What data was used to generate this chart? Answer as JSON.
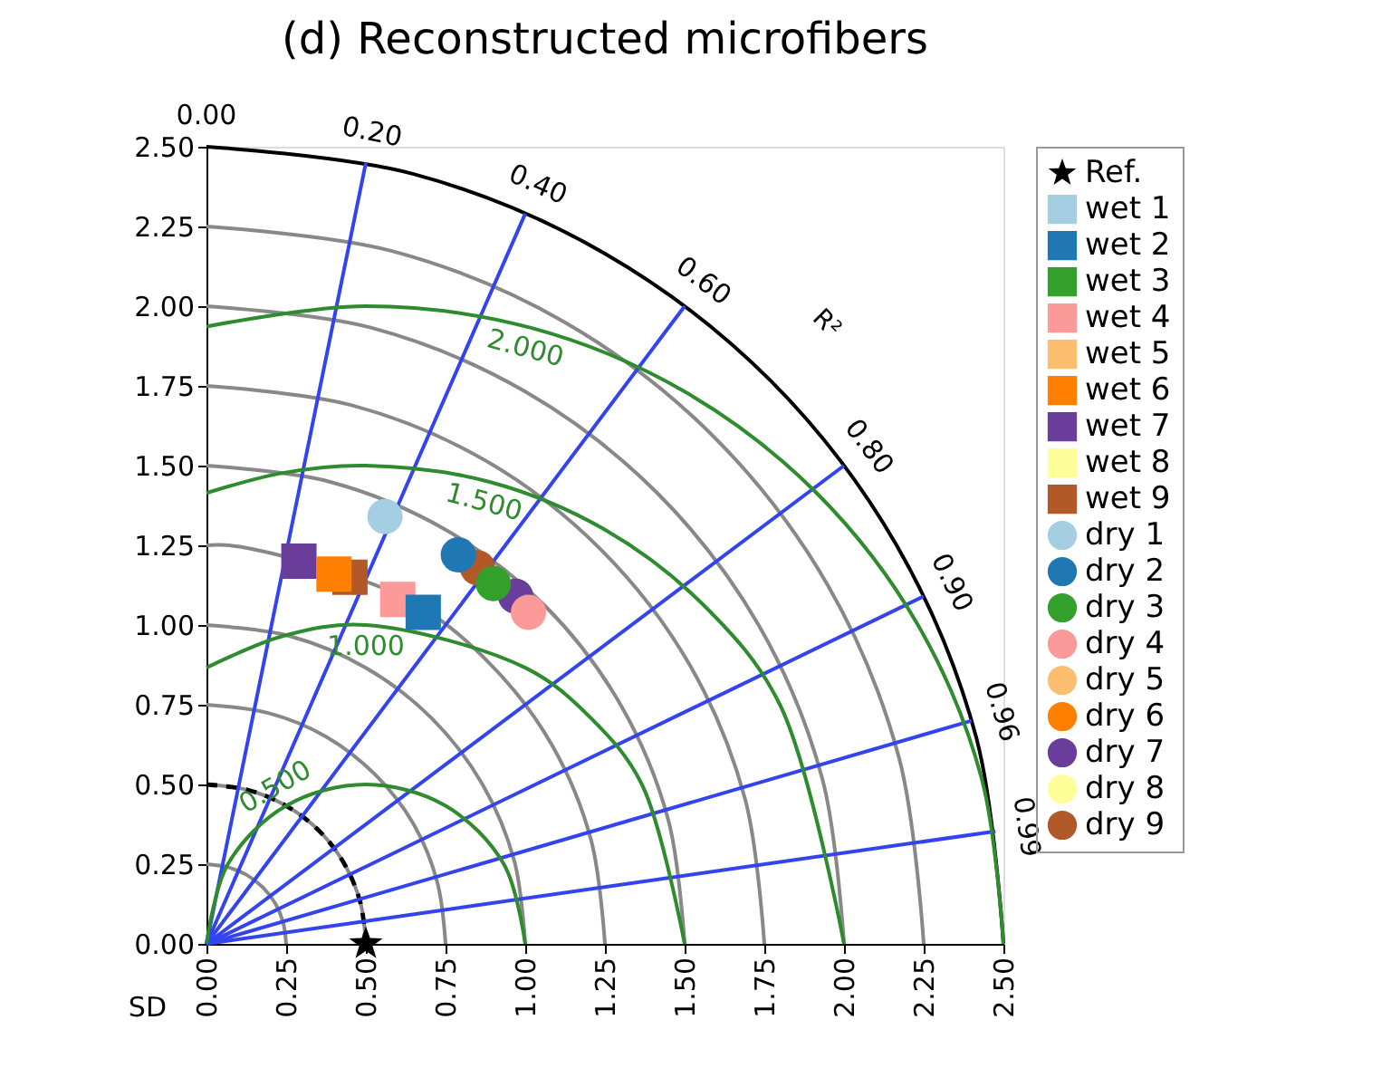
{
  "chart_data": {
    "type": "scatter",
    "title": "(d) Reconstructed microfibers",
    "xlabel": "SD",
    "xlim": [
      0,
      2.5
    ],
    "ylim": [
      0,
      2.5
    ],
    "xticks": [
      {
        "value": 0,
        "label": "0.00"
      },
      {
        "value": 0.25,
        "label": "0.25"
      },
      {
        "value": 0.5,
        "label": "0.50"
      },
      {
        "value": 0.75,
        "label": "0.75"
      },
      {
        "value": 1,
        "label": "1.00"
      },
      {
        "value": 1.25,
        "label": "1.25"
      },
      {
        "value": 1.5,
        "label": "1.50"
      },
      {
        "value": 1.75,
        "label": "1.75"
      },
      {
        "value": 2,
        "label": "2.00"
      },
      {
        "value": 2.25,
        "label": "2.25"
      },
      {
        "value": 2.5,
        "label": "2.50"
      }
    ],
    "yticks": [
      {
        "value": 0,
        "label": "0.00"
      },
      {
        "value": 0.25,
        "label": "0.25"
      },
      {
        "value": 0.5,
        "label": "0.50"
      },
      {
        "value": 0.75,
        "label": "0.75"
      },
      {
        "value": 1,
        "label": "1.00"
      },
      {
        "value": 1.25,
        "label": "1.25"
      },
      {
        "value": 1.5,
        "label": "1.50"
      },
      {
        "value": 1.75,
        "label": "1.75"
      },
      {
        "value": 2,
        "label": "2.00"
      },
      {
        "value": 2.25,
        "label": "2.25"
      },
      {
        "value": 2.5,
        "label": "2.50"
      }
    ],
    "annotations": [
      "R²",
      {
        "text": "0.00",
        "x": 0,
        "y": 2.5
      },
      {
        "text": "0.20",
        "x": 0.5,
        "y": 2.45
      },
      {
        "text": "0.40",
        "x": 1.0,
        "y": 2.29
      },
      {
        "text": "0.60",
        "x": 1.5,
        "y": 2.0
      },
      {
        "text": "0.80",
        "x": 2.0,
        "y": 1.5
      },
      {
        "text": "0.90",
        "x": 2.25,
        "y": 1.09
      },
      {
        "text": "0.96",
        "x": 2.4,
        "y": 0.7
      },
      {
        "text": "0.99",
        "x": 2.475,
        "y": 0.353
      },
      {
        "text": "0.500",
        "x": 0.25,
        "y": 0.433
      },
      {
        "text": "1.000",
        "x": 0.5,
        "y": 1.0
      },
      {
        "text": "1.500",
        "x": 0.888,
        "y": 1.449
      },
      {
        "text": "2.000",
        "x": 1.018,
        "y": 1.932
      }
    ],
    "legend": "right",
    "series": [
      {
        "name": "Ref.",
        "color": "#000000",
        "marker": "star",
        "x": [
          0.5
        ],
        "values": [
          0
        ]
      },
      {
        "name": "wet 1",
        "color": "#a6cee3",
        "marker": "square",
        "x": [
          null
        ],
        "values": [
          null
        ]
      },
      {
        "name": "wet 2",
        "color": "#1f78b4",
        "marker": "square",
        "x": [
          0.68
        ],
        "values": [
          1.04
        ]
      },
      {
        "name": "wet 3",
        "color": "#33a02c",
        "marker": "square",
        "x": [
          null
        ],
        "values": [
          null
        ]
      },
      {
        "name": "wet 4",
        "color": "#fb9a99",
        "marker": "square",
        "x": [
          0.6
        ],
        "values": [
          1.08
        ]
      },
      {
        "name": "wet 5",
        "color": "#fdbf6f",
        "marker": "square",
        "x": [
          null
        ],
        "values": [
          null
        ]
      },
      {
        "name": "wet 6",
        "color": "#ff7f00",
        "marker": "square",
        "x": [
          0.4
        ],
        "values": [
          1.16
        ]
      },
      {
        "name": "wet 7",
        "color": "#6a3d9a",
        "marker": "square",
        "x": [
          0.29
        ],
        "values": [
          1.2
        ]
      },
      {
        "name": "wet 8",
        "color": "#ffff99",
        "marker": "square",
        "x": [
          null
        ],
        "values": [
          null
        ]
      },
      {
        "name": "wet 9",
        "color": "#b15928",
        "marker": "square",
        "x": [
          0.45
        ],
        "values": [
          1.15
        ]
      },
      {
        "name": "dry 1",
        "color": "#a6cee3",
        "marker": "circle",
        "x": [
          0.56
        ],
        "values": [
          1.34
        ]
      },
      {
        "name": "dry 2",
        "color": "#1f78b4",
        "marker": "circle",
        "x": [
          0.79
        ],
        "values": [
          1.22
        ]
      },
      {
        "name": "dry 3",
        "color": "#33a02c",
        "marker": "circle",
        "x": [
          0.9
        ],
        "values": [
          1.13
        ]
      },
      {
        "name": "dry 4",
        "color": "#fb9a99",
        "marker": "circle",
        "x": [
          1.01
        ],
        "values": [
          1.04
        ]
      },
      {
        "name": "dry 5",
        "color": "#fdbf6f",
        "marker": "circle",
        "x": [
          null
        ],
        "values": [
          null
        ]
      },
      {
        "name": "dry 6",
        "color": "#ff7f00",
        "marker": "circle",
        "x": [
          null
        ],
        "values": [
          null
        ]
      },
      {
        "name": "dry 7",
        "color": "#6a3d9a",
        "marker": "circle",
        "x": [
          0.97
        ],
        "values": [
          1.09
        ]
      },
      {
        "name": "dry 8",
        "color": "#ffff99",
        "marker": "circle",
        "x": [
          null
        ],
        "values": [
          null
        ]
      },
      {
        "name": "dry 9",
        "color": "#b15928",
        "marker": "circle",
        "x": [
          0.85
        ],
        "values": [
          1.18
        ]
      },
      {
        "type": "line",
        "color": "#888888",
        "x": [
          0,
          0.065,
          0.125,
          0.177,
          0.217,
          0.241,
          0.25
        ],
        "values": [
          0.25,
          0.241,
          0.217,
          0.177,
          0.125,
          0.065,
          0
        ]
      },
      {
        "type": "line",
        "color": "#888888",
        "x": [
          0,
          0.129,
          0.25,
          0.354,
          0.433,
          0.483,
          0.5
        ],
        "values": [
          0.5,
          0.483,
          0.433,
          0.354,
          0.25,
          0.129,
          0
        ]
      },
      {
        "type": "line",
        "color": "#888888",
        "x": [
          0,
          0.194,
          0.375,
          0.53,
          0.65,
          0.724,
          0.75
        ],
        "values": [
          0.75,
          0.724,
          0.65,
          0.53,
          0.375,
          0.194,
          0
        ]
      },
      {
        "type": "line",
        "color": "#888888",
        "x": [
          0,
          0.259,
          0.5,
          0.707,
          0.866,
          0.966,
          1
        ],
        "values": [
          1,
          0.966,
          0.866,
          0.707,
          0.5,
          0.259,
          0
        ]
      },
      {
        "type": "line",
        "color": "#888888",
        "x": [
          0,
          0.109,
          0.625,
          0.884,
          1.083,
          1.207,
          1.25
        ],
        "values": [
          1.25,
          1.245,
          1.083,
          0.884,
          0.625,
          0.324,
          0
        ]
      },
      {
        "type": "line",
        "color": "#888888",
        "x": [
          0,
          0.388,
          0.75,
          1.061,
          1.299,
          1.449,
          1.5
        ],
        "values": [
          1.5,
          1.449,
          1.299,
          1.061,
          0.75,
          0.388,
          0
        ]
      },
      {
        "type": "line",
        "color": "#888888",
        "x": [
          0,
          0.453,
          0.875,
          1.237,
          1.516,
          1.69,
          1.75
        ],
        "values": [
          1.75,
          1.69,
          1.516,
          1.237,
          0.875,
          0.453,
          0
        ]
      },
      {
        "type": "line",
        "color": "#888888",
        "x": [
          0,
          0.518,
          1,
          1.414,
          1.732,
          1.932,
          2
        ],
        "values": [
          2,
          1.932,
          1.732,
          1.414,
          1,
          0.518,
          0
        ]
      },
      {
        "type": "line",
        "color": "#888888",
        "x": [
          0,
          0.582,
          1.125,
          1.591,
          1.949,
          2.173,
          2.25
        ],
        "values": [
          2.25,
          2.173,
          1.949,
          1.591,
          1.125,
          0.582,
          0
        ]
      },
      {
        "type": "line",
        "color": "#000000",
        "x": [
          0,
          0.647,
          1.25,
          1.768,
          2.165,
          2.415,
          2.5
        ],
        "values": [
          2.5,
          2.415,
          2.165,
          1.768,
          1.25,
          0.647,
          0
        ]
      },
      {
        "type": "line",
        "color": "#000000",
        "line_style": "dashed",
        "x": [
          0,
          0.129,
          0.25,
          0.354,
          0.433,
          0.483,
          0.5
        ],
        "values": [
          0.5,
          0.483,
          0.433,
          0.354,
          0.25,
          0.129,
          0
        ]
      },
      {
        "type": "line",
        "color": "#3344ee",
        "x": [
          0,
          0.5
        ],
        "values": [
          0,
          2.45
        ]
      },
      {
        "type": "line",
        "color": "#3344ee",
        "x": [
          0,
          1.0
        ],
        "values": [
          0,
          2.29
        ]
      },
      {
        "type": "line",
        "color": "#3344ee",
        "x": [
          0,
          1.5
        ],
        "values": [
          0,
          2.0
        ]
      },
      {
        "type": "line",
        "color": "#3344ee",
        "x": [
          0,
          2.0
        ],
        "values": [
          0,
          1.5
        ]
      },
      {
        "type": "line",
        "color": "#3344ee",
        "x": [
          0,
          2.25
        ],
        "values": [
          0,
          1.09
        ]
      },
      {
        "type": "line",
        "color": "#3344ee",
        "x": [
          0,
          2.4
        ],
        "values": [
          0,
          0.7
        ]
      },
      {
        "type": "line",
        "color": "#3344ee",
        "x": [
          0,
          2.475
        ],
        "values": [
          0,
          0.353
        ]
      },
      {
        "type": "line",
        "color": "#2e8b2e",
        "x": [
          0,
          0.067,
          0.25,
          0.5,
          0.75,
          0.933,
          1
        ],
        "values": [
          0,
          0.25,
          0.433,
          0.5,
          0.433,
          0.25,
          0
        ]
      },
      {
        "type": "line",
        "color": "#2e8b2e",
        "x": [
          0,
          0.241,
          0.5,
          1,
          1.207,
          1.366,
          1.5
        ],
        "values": [
          0.866,
          0.966,
          1,
          0.866,
          0.707,
          0.5,
          0
        ]
      },
      {
        "type": "line",
        "color": "#2e8b2e",
        "x": [
          0,
          0.24,
          0.5,
          0.888,
          1.25,
          1.561,
          1.799,
          2
        ],
        "values": [
          1.414,
          1.477,
          1.5,
          1.449,
          1.299,
          1.061,
          0.75,
          0
        ]
      },
      {
        "type": "line",
        "color": "#2e8b2e",
        "x": [
          0,
          0.5,
          1.018,
          1.5,
          1.914,
          2.232,
          2.432,
          2.5
        ],
        "values": [
          1.936,
          2,
          1.932,
          1.732,
          1.414,
          1,
          0.518,
          0
        ]
      }
    ]
  }
}
